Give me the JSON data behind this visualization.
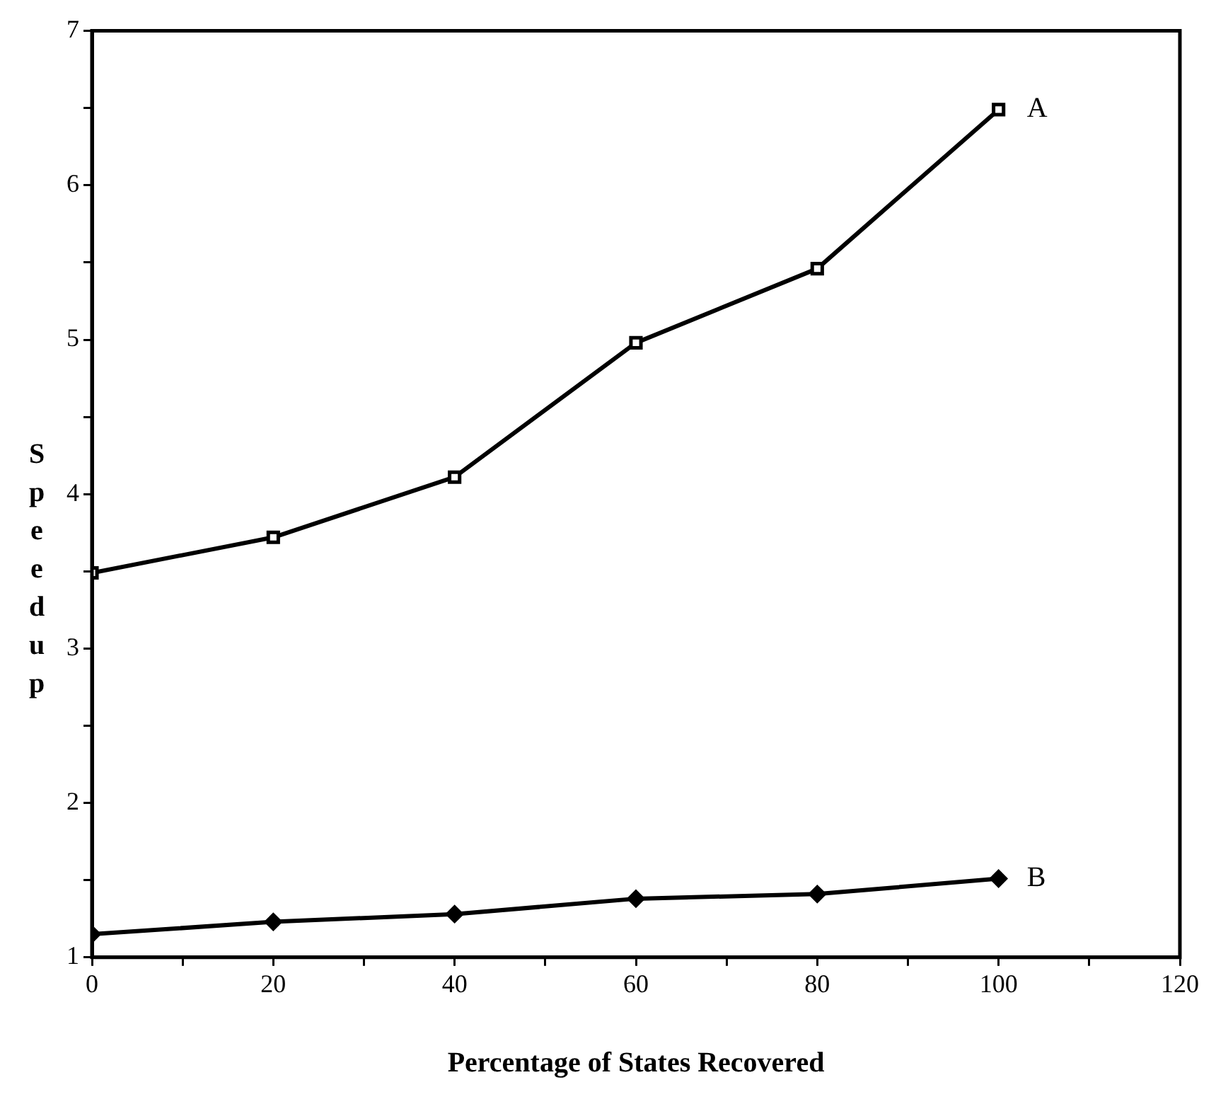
{
  "chart_data": {
    "type": "line",
    "xlabel": "Percentage of States Recovered",
    "ylabel": "Speedup",
    "x": [
      0,
      20,
      40,
      60,
      80,
      100
    ],
    "series": [
      {
        "name": "A",
        "color": "#000000",
        "marker": "square",
        "values": [
          3.49,
          3.72,
          4.11,
          4.98,
          5.46,
          6.49
        ]
      },
      {
        "name": "B",
        "color": "#000000",
        "marker": "diamond",
        "values": [
          1.15,
          1.23,
          1.28,
          1.38,
          1.41,
          1.51
        ]
      }
    ],
    "xlim": [
      0,
      120
    ],
    "xticks": [
      0,
      {
        "value": 10,
        "label": null
      },
      20,
      {
        "value": 30,
        "label": null
      },
      40,
      {
        "value": 50,
        "label": null
      },
      60,
      {
        "value": 70,
        "label": null
      },
      80,
      {
        "value": 90,
        "label": null
      },
      100,
      {
        "value": 110,
        "label": null
      },
      120
    ],
    "ylim": [
      1,
      7
    ],
    "yticks": [
      1,
      {
        "value": 1.5,
        "label": null
      },
      2,
      {
        "value": 2.5,
        "label": null
      },
      3,
      {
        "value": 3.5,
        "label": null
      },
      4,
      {
        "value": 4.5,
        "label": null
      },
      5,
      {
        "value": 5.5,
        "label": null
      },
      6,
      {
        "value": 6.5,
        "label": null
      },
      7
    ],
    "grid": false,
    "legend": false,
    "line_style": "solid"
  }
}
